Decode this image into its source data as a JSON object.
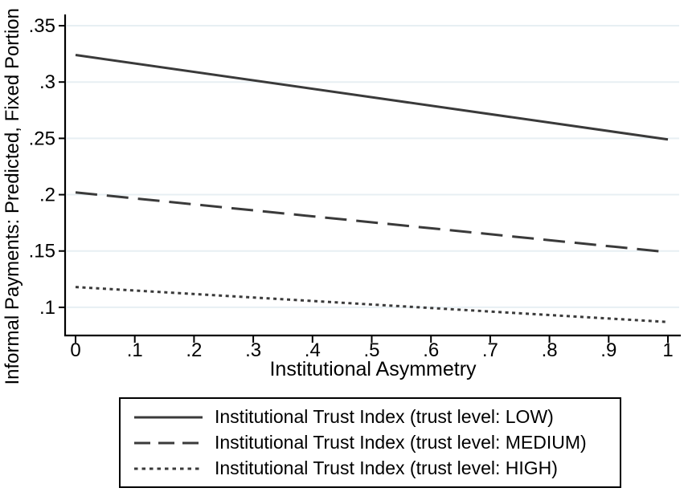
{
  "chart_data": {
    "type": "line",
    "xlabel": "Institutional Asymmetry",
    "ylabel": "Informal Payments: Predicted, Fixed Portion",
    "xlim": [
      0,
      1
    ],
    "ylim": [
      0.075,
      0.36
    ],
    "grid": "horizontal",
    "legend_position": "bottom",
    "x_ticks": {
      "values": [
        0,
        0.1,
        0.2,
        0.3,
        0.4,
        0.5,
        0.6,
        0.7,
        0.8,
        0.9,
        1
      ],
      "labels": [
        "0",
        ".1",
        ".2",
        ".3",
        ".4",
        ".5",
        ".6",
        ".7",
        ".8",
        ".9",
        "1"
      ]
    },
    "y_ticks": {
      "values": [
        0.1,
        0.15,
        0.2,
        0.25,
        0.3,
        0.35
      ],
      "labels": [
        ".1",
        ".15",
        ".2",
        ".25",
        ".3",
        ".35"
      ]
    },
    "series": [
      {
        "name": "Institutional Trust Index (trust level: LOW)",
        "line_style": "solid",
        "x": [
          0,
          1
        ],
        "y": [
          0.324,
          0.249
        ]
      },
      {
        "name": "Institutional Trust Index (trust level: MEDIUM)",
        "line_style": "dashed",
        "x": [
          0,
          1
        ],
        "y": [
          0.202,
          0.149
        ]
      },
      {
        "name": "Institutional Trust Index (trust level: HIGH)",
        "line_style": "dotted",
        "x": [
          0,
          1
        ],
        "y": [
          0.118,
          0.087
        ]
      }
    ],
    "colors": {
      "line": "#3a3a3a",
      "grid": "#e7eff3",
      "axis": "#000000",
      "text": "#000000",
      "background": "#ffffff",
      "legend_border": "#000000"
    }
  }
}
